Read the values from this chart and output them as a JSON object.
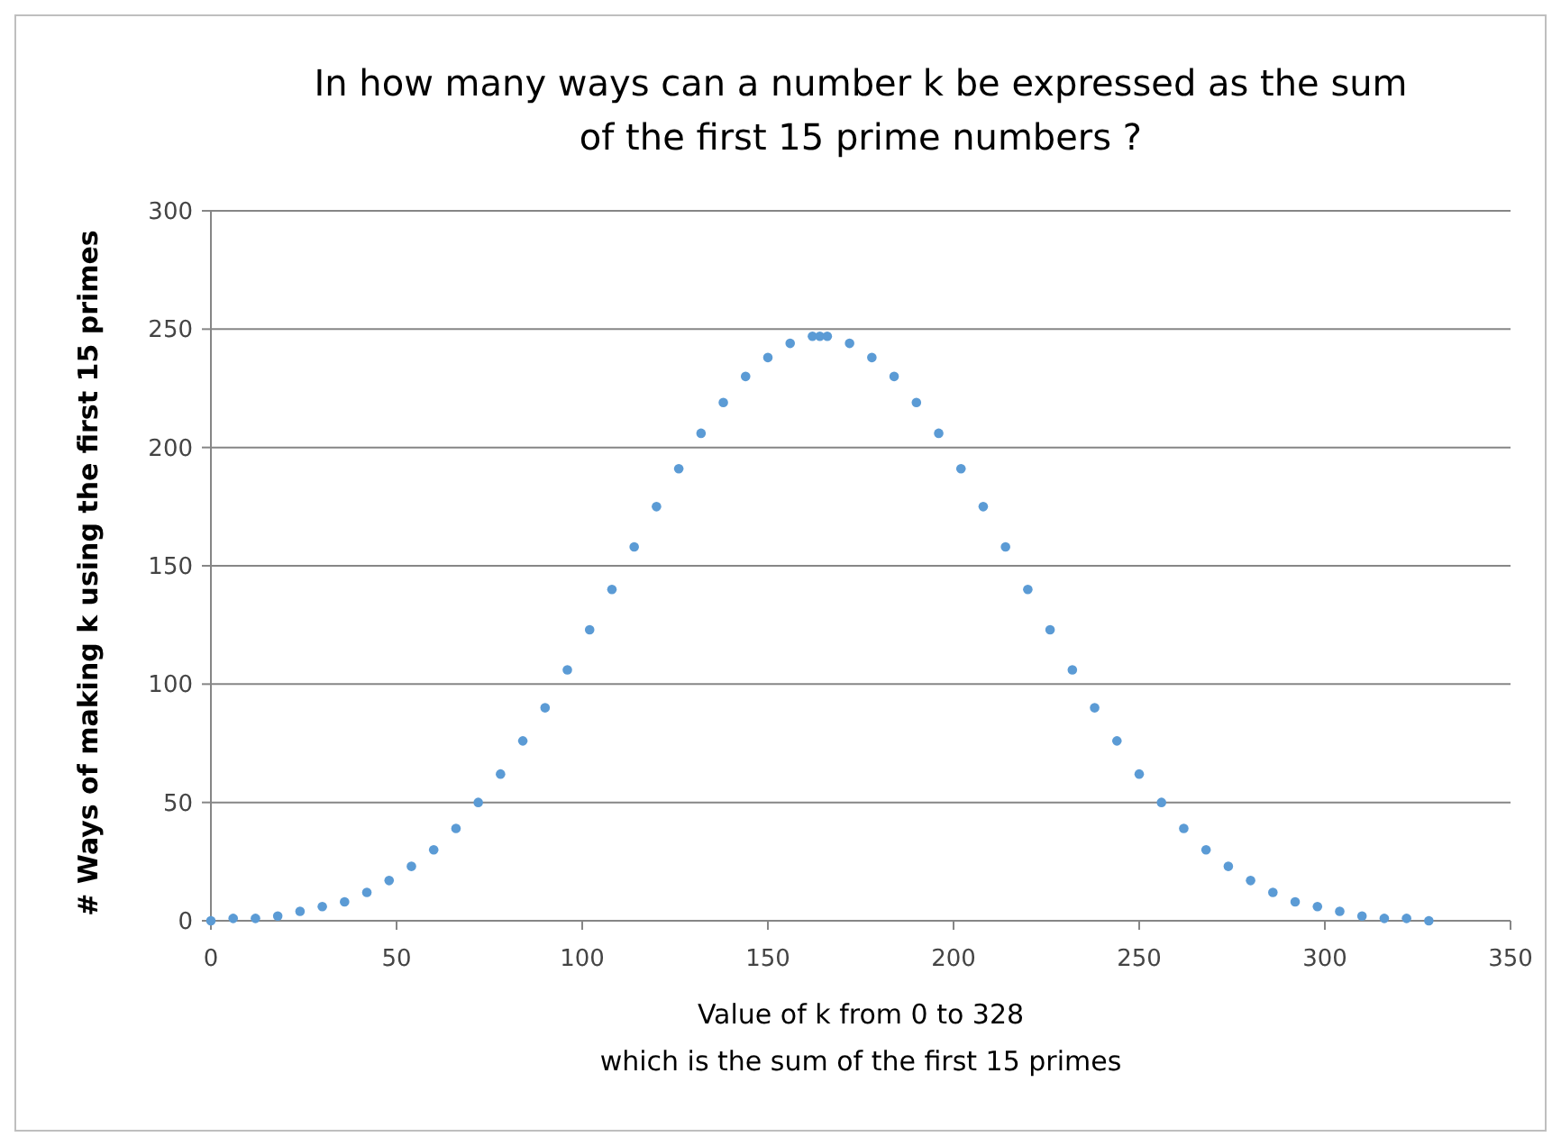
{
  "chart_data": {
    "type": "scatter",
    "title": "In how many ways can a number k be expressed as the sum\nof the first 15 prime numbers ?",
    "xlabel": "Value of k from 0 to 328\nwhich is the sum of the first 15 primes",
    "ylabel": "# Ways of making k using the first 15 primes",
    "x": [
      0,
      6,
      12,
      18,
      24,
      30,
      36,
      42,
      48,
      54,
      60,
      66,
      72,
      78,
      84,
      90,
      96,
      102,
      108,
      114,
      120,
      126,
      132,
      138,
      144,
      150,
      156,
      162,
      164,
      166,
      172,
      178,
      184,
      190,
      196,
      202,
      208,
      214,
      220,
      226,
      232,
      238,
      244,
      250,
      256,
      262,
      268,
      274,
      280,
      286,
      292,
      298,
      304,
      310,
      316,
      322,
      328
    ],
    "series": [
      {
        "color": "#5b9bd5",
        "values": [
          0,
          1,
          1,
          2,
          4,
          6,
          8,
          12,
          17,
          23,
          30,
          39,
          50,
          62,
          76,
          90,
          106,
          123,
          140,
          158,
          175,
          191,
          206,
          219,
          230,
          238,
          244,
          247,
          247,
          247,
          244,
          238,
          230,
          219,
          206,
          191,
          175,
          158,
          140,
          123,
          106,
          90,
          76,
          62,
          50,
          39,
          30,
          23,
          17,
          12,
          8,
          6,
          4,
          2,
          1,
          1,
          0
        ]
      }
    ],
    "xlim": [
      0,
      350
    ],
    "xticks": [
      0,
      50,
      100,
      150,
      200,
      250,
      300,
      350
    ],
    "ylim": [
      0,
      300
    ],
    "yticks": [
      0,
      50,
      100,
      150,
      200,
      250,
      300
    ],
    "grid": "y",
    "marker": "circle"
  }
}
